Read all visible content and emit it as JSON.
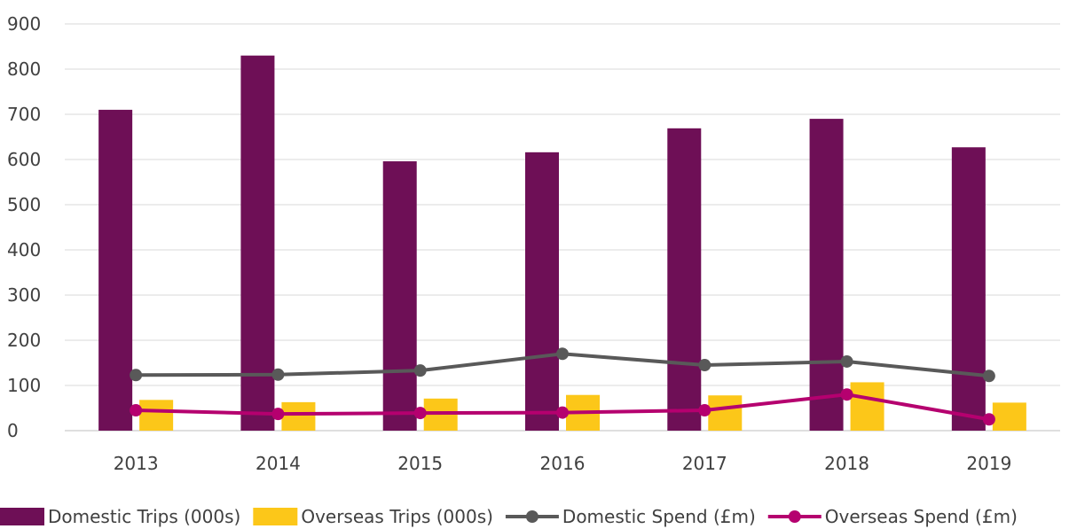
{
  "chart_data": {
    "type": "bar",
    "title": "",
    "xlabel": "",
    "ylabel": "",
    "categories": [
      "2013",
      "2014",
      "2015",
      "2016",
      "2017",
      "2018",
      "2019"
    ],
    "ylim": [
      0,
      900
    ],
    "yticks": [
      0,
      100,
      200,
      300,
      400,
      500,
      600,
      700,
      800,
      900
    ],
    "grid": true,
    "legend_position": "bottom",
    "series": [
      {
        "name": "Domestic Trips (000s)",
        "kind": "bar",
        "color": "#6e0f56",
        "values": [
          710,
          830,
          596,
          616,
          669,
          690,
          627
        ]
      },
      {
        "name": "Overseas Trips (000s)",
        "kind": "bar",
        "color": "#fcc719",
        "values": [
          68,
          63,
          71,
          79,
          78,
          107,
          62
        ]
      },
      {
        "name": "Domestic Spend (£m)",
        "kind": "line",
        "color": "#595959",
        "values": [
          123,
          124,
          133,
          170,
          145,
          153,
          121
        ]
      },
      {
        "name": "Overseas Spend (£m)",
        "kind": "line",
        "color": "#b5006f",
        "values": [
          45,
          37,
          39,
          40,
          45,
          80,
          25
        ]
      }
    ]
  }
}
